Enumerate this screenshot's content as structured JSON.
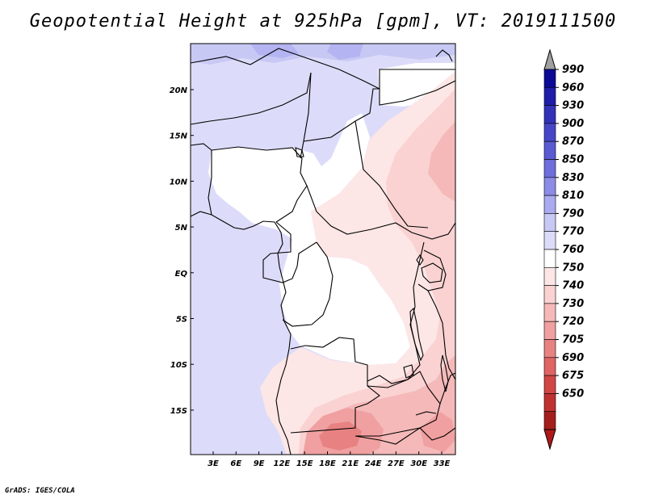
{
  "title": "Geopotential Height at 925hPa [gpm], VT: 2019111500",
  "credit": "GrADS: IGES/COLA",
  "map": {
    "lat_labels": [
      "20N",
      "15N",
      "10N",
      "5N",
      "EQ",
      "5S",
      "10S",
      "15S"
    ],
    "lon_labels": [
      "3E",
      "6E",
      "9E",
      "12E",
      "15E",
      "18E",
      "21E",
      "24E",
      "27E",
      "30E",
      "33E"
    ]
  },
  "colorbar": {
    "labels": [
      "990",
      "960",
      "930",
      "900",
      "870",
      "850",
      "830",
      "810",
      "790",
      "770",
      "760",
      "750",
      "740",
      "730",
      "720",
      "705",
      "690",
      "675",
      "650"
    ],
    "colors": [
      "#0a0a96",
      "#1e1eaa",
      "#3232b9",
      "#4646c8",
      "#5a5ad2",
      "#6e6edc",
      "#8c8ce6",
      "#aaaaf0",
      "#c8c8f5",
      "#dcdcfa",
      "#ffffff",
      "#fde6e6",
      "#fad2d2",
      "#f5b9b9",
      "#f0a0a0",
      "#e88282",
      "#e06464",
      "#d24646",
      "#c03232",
      "#a51e1e"
    ],
    "top_arrow": "#a0a0a0",
    "bottom_arrow": "#b01818"
  }
}
